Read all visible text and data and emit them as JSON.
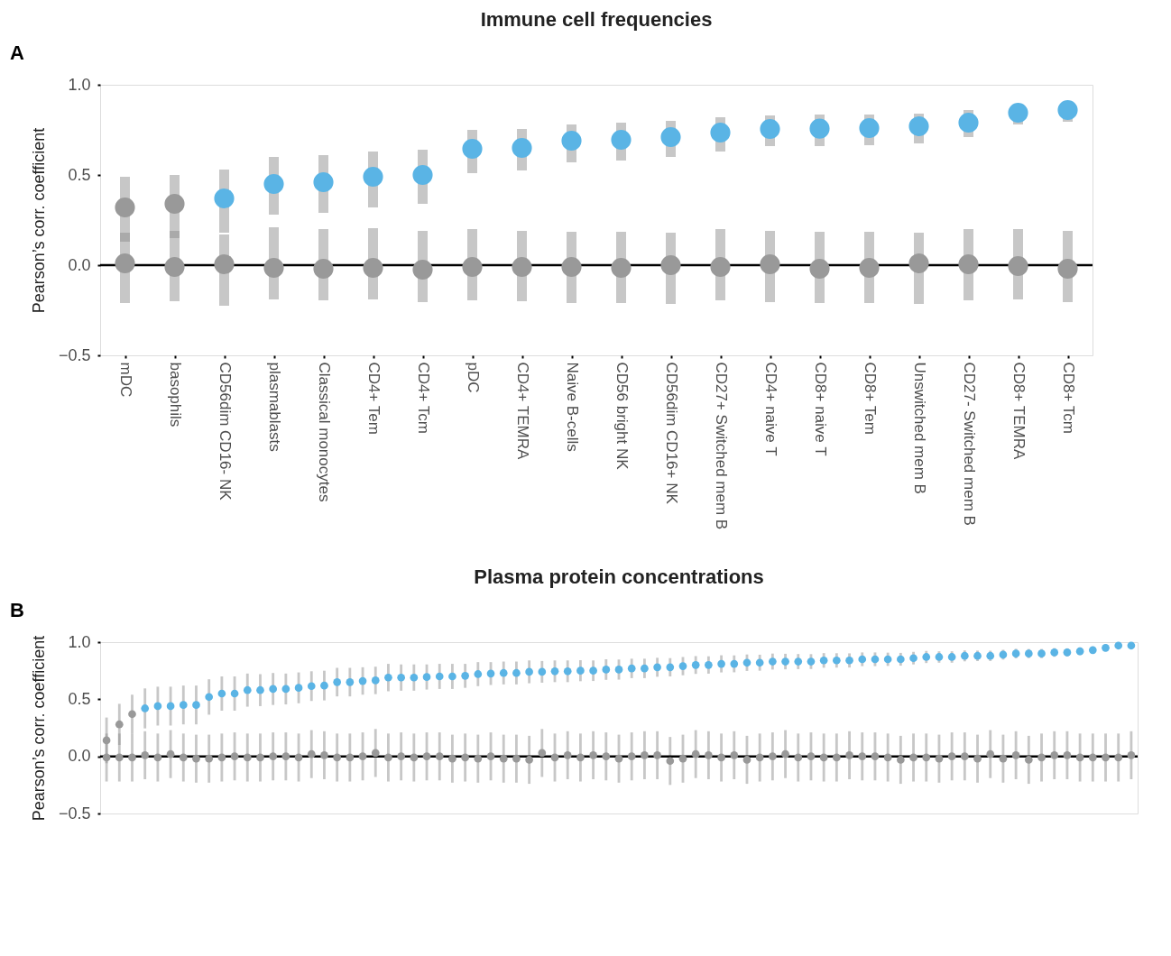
{
  "chart_data": [
    {
      "type": "scatter",
      "title": "Immune cell frequencies",
      "ylabel": "Pearson’s corr. coefficient",
      "annotations": [
        "A"
      ],
      "categories": [
        "mDC",
        "basophils",
        "CD56dim CD16- NK",
        "plasmablasts",
        "Classical monocytes",
        "CD4+ Tem",
        "CD4+ Tcm",
        "pDC",
        "CD4+ TEMRA",
        "Naive B-cells",
        "CD56 bright NK",
        "CD56dim CD16+ NK",
        "CD27+ Switched mem B",
        "CD4+ naive T",
        "CD8+ naive T",
        "CD8+ Tem",
        "Unswitched mem B",
        "CD27- Switched mem B",
        "CD8+ TEMRA",
        "CD8+ Tcm"
      ],
      "ylim": [
        -0.5,
        1.0
      ],
      "yticks": [
        {
          "value": -0.5,
          "label": "−0.5"
        },
        {
          "value": 0,
          "label": "0.0"
        },
        {
          "value": 0.5,
          "label": "0.5"
        },
        {
          "value": 1.0,
          "label": "1.0"
        }
      ],
      "grid": false,
      "marker": "circle",
      "ref_lines": [
        {
          "axis": "y",
          "value": 0,
          "color": "#000000",
          "line_style": "solid"
        }
      ],
      "series": [
        {
          "color": "#999999",
          "values": [
            0.01,
            -0.01,
            0.005,
            -0.015,
            -0.02,
            -0.015,
            -0.025,
            -0.01,
            -0.01,
            -0.01,
            -0.015,
            0.0,
            -0.01,
            0.005,
            -0.02,
            -0.015,
            0.01,
            0.005,
            -0.005,
            -0.02
          ],
          "errors": [
            [
              -0.21,
              0.18
            ],
            [
              -0.2,
              0.19
            ],
            [
              -0.225,
              0.17
            ],
            [
              -0.19,
              0.21
            ],
            [
              -0.195,
              0.2
            ],
            [
              -0.19,
              0.205
            ],
            [
              -0.205,
              0.19
            ],
            [
              -0.195,
              0.2
            ],
            [
              -0.2,
              0.19
            ],
            [
              -0.21,
              0.185
            ],
            [
              -0.21,
              0.185
            ],
            [
              -0.215,
              0.18
            ],
            [
              -0.195,
              0.2
            ],
            [
              -0.205,
              0.19
            ],
            [
              -0.21,
              0.185
            ],
            [
              -0.21,
              0.185
            ],
            [
              -0.215,
              0.18
            ],
            [
              -0.195,
              0.2
            ],
            [
              -0.19,
              0.2
            ],
            [
              -0.205,
              0.19
            ]
          ]
        },
        {
          "colors": [
            "#999999",
            "#999999",
            "#5ab4e5",
            "#5ab4e5",
            "#5ab4e5",
            "#5ab4e5",
            "#5ab4e5",
            "#5ab4e5",
            "#5ab4e5",
            "#5ab4e5",
            "#5ab4e5",
            "#5ab4e5",
            "#5ab4e5",
            "#5ab4e5",
            "#5ab4e5",
            "#5ab4e5",
            "#5ab4e5",
            "#5ab4e5",
            "#5ab4e5",
            "#5ab4e5"
          ],
          "values": [
            0.32,
            0.34,
            0.37,
            0.45,
            0.46,
            0.49,
            0.5,
            0.645,
            0.65,
            0.69,
            0.695,
            0.71,
            0.735,
            0.755,
            0.757,
            0.76,
            0.77,
            0.79,
            0.845,
            0.86
          ],
          "errors": [
            [
              0.13,
              0.49
            ],
            [
              0.15,
              0.5
            ],
            [
              0.18,
              0.53
            ],
            [
              0.28,
              0.6
            ],
            [
              0.29,
              0.61
            ],
            [
              0.32,
              0.63
            ],
            [
              0.34,
              0.64
            ],
            [
              0.51,
              0.75
            ],
            [
              0.525,
              0.755
            ],
            [
              0.57,
              0.78
            ],
            [
              0.58,
              0.79
            ],
            [
              0.6,
              0.8
            ],
            [
              0.63,
              0.82
            ],
            [
              0.66,
              0.83
            ],
            [
              0.66,
              0.835
            ],
            [
              0.665,
              0.835
            ],
            [
              0.675,
              0.84
            ],
            [
              0.71,
              0.86
            ],
            [
              0.78,
              0.845
            ],
            [
              0.795,
              0.9
            ]
          ]
        }
      ]
    },
    {
      "type": "scatter",
      "title": "Plasma protein concentrations",
      "ylabel": "Pearson’s corr. coefficient",
      "annotations": [
        "B"
      ],
      "categories": [
        null,
        null,
        null,
        null,
        null,
        null,
        null,
        null,
        null,
        null,
        null,
        null,
        null,
        null,
        null,
        null,
        null,
        null,
        null,
        null,
        null,
        null,
        null,
        null,
        null,
        null,
        null,
        null,
        null,
        null,
        null,
        null,
        null,
        null,
        null,
        null,
        null,
        null,
        null,
        null,
        null,
        null,
        null,
        null,
        null,
        null,
        null,
        null,
        null,
        null,
        null,
        null,
        null,
        null,
        null,
        null,
        null,
        null,
        null,
        null,
        null,
        null,
        null,
        null,
        null,
        null,
        null,
        null,
        null,
        null,
        null,
        null,
        null,
        null,
        null,
        null,
        null,
        null,
        null,
        null,
        null
      ],
      "tick_labels": "y",
      "ylim": [
        -0.5,
        1.0
      ],
      "yticks": [
        {
          "value": -0.5,
          "label": "−0.5"
        },
        {
          "value": 0,
          "label": "0.0"
        },
        {
          "value": 0.5,
          "label": "0.5"
        },
        {
          "value": 1.0,
          "label": "1.0"
        }
      ],
      "grid": false,
      "marker": "circle",
      "ref_lines": [
        {
          "axis": "y",
          "value": 0,
          "color": "#000000",
          "line_style": "solid"
        }
      ],
      "series": [
        {
          "color": "#999999",
          "values": [
            -0.01,
            -0.01,
            -0.01,
            0.01,
            -0.01,
            0.02,
            -0.01,
            -0.02,
            -0.02,
            -0.01,
            0.0,
            -0.01,
            -0.01,
            0.0,
            0.0,
            -0.01,
            0.02,
            0.01,
            -0.01,
            -0.01,
            0.0,
            0.03,
            -0.01,
            0.0,
            -0.01,
            0.0,
            0.0,
            -0.02,
            -0.01,
            -0.02,
            0.0,
            -0.02,
            -0.02,
            -0.03,
            0.03,
            -0.01,
            0.01,
            -0.01,
            0.01,
            0.0,
            -0.02,
            0.0,
            0.01,
            0.01,
            -0.04,
            -0.02,
            0.02,
            0.01,
            -0.01,
            0.01,
            -0.03,
            -0.01,
            0.0,
            0.02,
            -0.01,
            0.0,
            -0.01,
            -0.01,
            0.01,
            0.0,
            0.0,
            -0.01,
            -0.03,
            -0.01,
            -0.01,
            -0.02,
            0.0,
            0.0,
            -0.02,
            0.02,
            -0.02,
            0.01,
            -0.03,
            -0.01,
            0.01,
            0.01,
            -0.01,
            -0.01,
            -0.01,
            -0.01,
            0.01
          ],
          "errors": [
            0.21,
            0.21,
            0.21,
            0.21,
            0.21,
            0.21,
            0.21,
            0.21,
            0.21,
            0.21,
            0.21,
            0.21,
            0.21,
            0.21,
            0.21,
            0.21,
            0.21,
            0.21,
            0.21,
            0.21,
            0.21,
            0.21,
            0.21,
            0.21,
            0.21,
            0.21,
            0.21,
            0.21,
            0.21,
            0.21,
            0.21,
            0.21,
            0.21,
            0.21,
            0.21,
            0.21,
            0.21,
            0.21,
            0.21,
            0.21,
            0.21,
            0.21,
            0.21,
            0.21,
            0.21,
            0.21,
            0.21,
            0.21,
            0.21,
            0.21,
            0.21,
            0.21,
            0.21,
            0.21,
            0.21,
            0.21,
            0.21,
            0.21,
            0.21,
            0.21,
            0.21,
            0.21,
            0.21,
            0.21,
            0.21,
            0.21,
            0.21,
            0.21,
            0.21,
            0.21,
            0.21,
            0.21,
            0.21,
            0.21,
            0.21,
            0.21,
            0.21,
            0.21,
            0.21,
            0.21,
            0.21
          ]
        },
        {
          "colors": [
            "#999999",
            "#999999",
            "#999999",
            "#5ab4e5",
            "#5ab4e5",
            "#5ab4e5",
            "#5ab4e5",
            "#5ab4e5",
            "#5ab4e5",
            "#5ab4e5",
            "#5ab4e5",
            "#5ab4e5",
            "#5ab4e5",
            "#5ab4e5",
            "#5ab4e5",
            "#5ab4e5",
            "#5ab4e5",
            "#5ab4e5",
            "#5ab4e5",
            "#5ab4e5",
            "#5ab4e5",
            "#5ab4e5",
            "#5ab4e5",
            "#5ab4e5",
            "#5ab4e5",
            "#5ab4e5",
            "#5ab4e5",
            "#5ab4e5",
            "#5ab4e5",
            "#5ab4e5",
            "#5ab4e5",
            "#5ab4e5",
            "#5ab4e5",
            "#5ab4e5",
            "#5ab4e5",
            "#5ab4e5",
            "#5ab4e5",
            "#5ab4e5",
            "#5ab4e5",
            "#5ab4e5",
            "#5ab4e5",
            "#5ab4e5",
            "#5ab4e5",
            "#5ab4e5",
            "#5ab4e5",
            "#5ab4e5",
            "#5ab4e5",
            "#5ab4e5",
            "#5ab4e5",
            "#5ab4e5",
            "#5ab4e5",
            "#5ab4e5",
            "#5ab4e5",
            "#5ab4e5",
            "#5ab4e5",
            "#5ab4e5",
            "#5ab4e5",
            "#5ab4e5",
            "#5ab4e5",
            "#5ab4e5",
            "#5ab4e5",
            "#5ab4e5",
            "#5ab4e5",
            "#5ab4e5",
            "#5ab4e5",
            "#5ab4e5",
            "#5ab4e5",
            "#5ab4e5",
            "#5ab4e5",
            "#5ab4e5",
            "#5ab4e5",
            "#5ab4e5",
            "#5ab4e5",
            "#5ab4e5",
            "#5ab4e5",
            "#5ab4e5",
            "#5ab4e5",
            "#5ab4e5",
            "#5ab4e5",
            "#5ab4e5",
            "#5ab4e5"
          ],
          "values": [
            0.14,
            0.28,
            0.37,
            0.42,
            0.44,
            0.44,
            0.45,
            0.45,
            0.52,
            0.55,
            0.55,
            0.58,
            0.58,
            0.59,
            0.59,
            0.6,
            0.615,
            0.62,
            0.65,
            0.65,
            0.66,
            0.665,
            0.69,
            0.69,
            0.69,
            0.695,
            0.7,
            0.7,
            0.705,
            0.72,
            0.725,
            0.73,
            0.73,
            0.74,
            0.74,
            0.745,
            0.745,
            0.75,
            0.75,
            0.76,
            0.76,
            0.77,
            0.77,
            0.78,
            0.78,
            0.79,
            0.8,
            0.8,
            0.81,
            0.81,
            0.82,
            0.82,
            0.83,
            0.83,
            0.83,
            0.83,
            0.84,
            0.84,
            0.84,
            0.85,
            0.85,
            0.85,
            0.85,
            0.86,
            0.87,
            0.87,
            0.87,
            0.88,
            0.88,
            0.88,
            0.89,
            0.9,
            0.9,
            0.9,
            0.91,
            0.91,
            0.92,
            0.93,
            0.95,
            0.97,
            0.97
          ],
          "errors": [
            0.2,
            0.18,
            0.17,
            0.175,
            0.17,
            0.17,
            0.17,
            0.17,
            0.155,
            0.15,
            0.15,
            0.145,
            0.14,
            0.14,
            0.135,
            0.135,
            0.13,
            0.13,
            0.125,
            0.125,
            0.12,
            0.12,
            0.12,
            0.115,
            0.115,
            0.11,
            0.11,
            0.11,
            0.105,
            0.105,
            0.1,
            0.1,
            0.1,
            0.1,
            0.095,
            0.095,
            0.095,
            0.092,
            0.09,
            0.09,
            0.088,
            0.085,
            0.085,
            0.083,
            0.08,
            0.08,
            0.078,
            0.076,
            0.075,
            0.074,
            0.072,
            0.07,
            0.07,
            0.068,
            0.066,
            0.065,
            0.064,
            0.063,
            0.062,
            0.06,
            0.06,
            0.058,
            0.056,
            0.055,
            0.053,
            0.05,
            0.05,
            0.048,
            0.046,
            0.045,
            0.043,
            0.042,
            0.04,
            0.04,
            0.038,
            0.036,
            0.034,
            0.032,
            0.03,
            0.03,
            0.03
          ]
        }
      ]
    }
  ]
}
